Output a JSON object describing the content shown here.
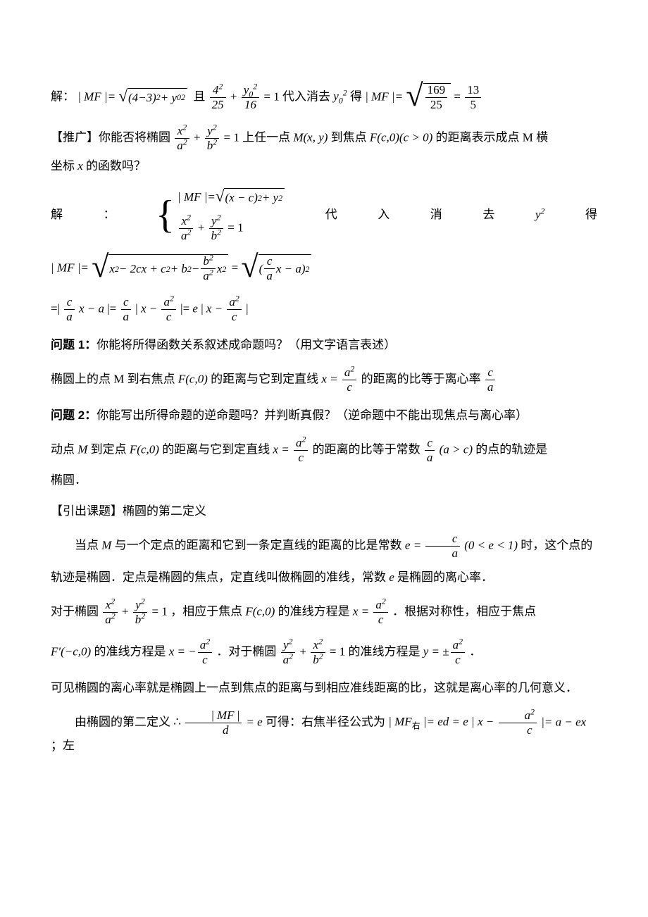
{
  "p1_prefix": "解：",
  "p1_mid1": "且",
  "p1_mid2": "代入消去",
  "p1_mid3": "得",
  "p2_prefix": "【推广】你能否将椭圆",
  "p2_mid": "上任一点",
  "p2_mid2": "到焦点",
  "p2_suffix": "的距离表示成点 M 横",
  "p3_text": "坐标",
  "p3_suffix": "的函数吗？",
  "p4_left": "解",
  "p4_colon": "：",
  "p4_w1": "代",
  "p4_w2": "入",
  "p4_w3": "消",
  "p4_w4": "去",
  "p4_w5": "得",
  "q1_bold": "问题 1：",
  "q1_text": "你能将所得函数关系叙述成命题吗？（用文字语言表述）",
  "a1_l": "椭圆上的点 M 到右焦点",
  "a1_m1": "的距离与它到定直线",
  "a1_m2": "的距离的比等于离心率",
  "q2_bold": "问题 2：",
  "q2_text": "你能写出所得命题的逆命题吗？并判断真假？（逆命题中不能出现焦点与离心率）",
  "a2_l": "动点",
  "a2_m1": "到定点",
  "a2_m2": "的距离与它到定直线",
  "a2_m3": "的距离的比等于常数",
  "a2_r": "的点的轨迹是",
  "a2_end": "椭圆．",
  "lead_title": "【引出课题】椭圆的第二定义",
  "def_l": "当点",
  "def_m1": "与一个定点的距离和它到一条定直线的距离的比是常数",
  "def_m2": "时，这个点的",
  "def2": "轨迹是椭圆．定点是椭圆的焦点，定直线叫做椭圆的准线，常数",
  "def2_end": "是椭圆的离心率．",
  "corr_l": "对于椭圆",
  "corr_m1": "，相应于焦点",
  "corr_m2": "的准线方程是",
  "corr_r": "．根据对称性，相应于焦点",
  "corr2_m1": "的准线方程是",
  "corr2_m2": "．对于椭圆",
  "corr2_m3": "的准线方程是",
  "corr2_end": "．",
  "meaning": "可见椭圆的离心率就是椭圆上一点到焦点的距离与到相应准线距离的比，这就是离心率的几何意义．",
  "last_l": "由椭圆的第二定义",
  "last_m1": "可得：右焦半径公式为",
  "last_r": "；左"
}
